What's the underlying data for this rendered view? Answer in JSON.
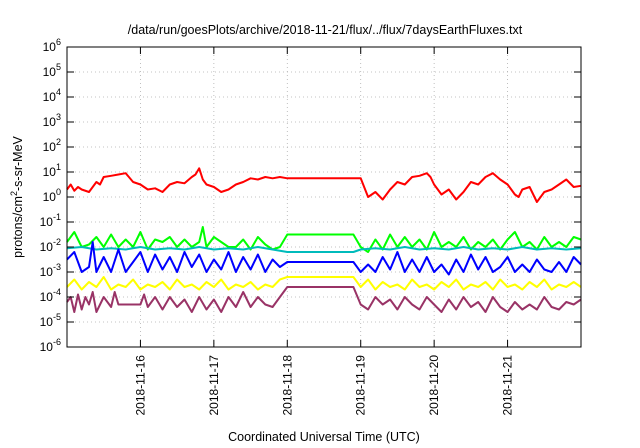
{
  "chart_data": {
    "type": "line",
    "title": "/data/run/goesPlots/archive/2018-11-21/flux/../flux/7daysEarthFluxes.txt",
    "xlabel": "Coordinated Universal Time (UTC)",
    "ylabel": {
      "base": "protons/cm",
      "sup": "2",
      "rest": "-s-sr-MeV"
    },
    "yscale": "log",
    "ylim_exp": [
      -6,
      6
    ],
    "y_ticks": [
      {
        "exp": -6,
        "label": "-6"
      },
      {
        "exp": -5,
        "label": "-5"
      },
      {
        "exp": -4,
        "label": "-4"
      },
      {
        "exp": -3,
        "label": "-3"
      },
      {
        "exp": -2,
        "label": "-2"
      },
      {
        "exp": -1,
        "label": "-1"
      },
      {
        "exp": 0,
        "label": "0"
      },
      {
        "exp": 1,
        "label": "1"
      },
      {
        "exp": 2,
        "label": "2"
      },
      {
        "exp": 3,
        "label": "3"
      },
      {
        "exp": 4,
        "label": "4"
      },
      {
        "exp": 5,
        "label": "5"
      },
      {
        "exp": 6,
        "label": "6"
      }
    ],
    "xlim_days": [
      0,
      7
    ],
    "x_ticks": [
      {
        "day": 1,
        "label": "2018-11-16"
      },
      {
        "day": 2,
        "label": "2018-11-17"
      },
      {
        "day": 3,
        "label": "2018-11-18"
      },
      {
        "day": 4,
        "label": "2018-11-19"
      },
      {
        "day": 5,
        "label": "2018-11-20"
      },
      {
        "day": 6,
        "label": "2018-11-21"
      }
    ],
    "grid": true,
    "series": [
      {
        "name": "red",
        "color": "#ff0000",
        "x": [
          0,
          0.05,
          0.1,
          0.15,
          0.2,
          0.3,
          0.4,
          0.45,
          0.5,
          0.6,
          0.7,
          0.8,
          0.9,
          1.0,
          1.05,
          1.1,
          1.2,
          1.3,
          1.4,
          1.5,
          1.6,
          1.7,
          1.75,
          1.8,
          1.85,
          1.9,
          2.0,
          2.1,
          2.2,
          2.3,
          2.4,
          2.5,
          2.6,
          2.7,
          2.8,
          2.9,
          3.0,
          3.5,
          3.8,
          4.0,
          4.1,
          4.2,
          4.3,
          4.4,
          4.5,
          4.6,
          4.7,
          4.8,
          4.9,
          4.95,
          5.0,
          5.1,
          5.2,
          5.3,
          5.4,
          5.5,
          5.6,
          5.7,
          5.8,
          5.9,
          6.0,
          6.1,
          6.15,
          6.2,
          6.3,
          6.4,
          6.5,
          6.6,
          6.7,
          6.8,
          6.9,
          7.0
        ],
        "exp": [
          0.3,
          0.5,
          0.25,
          0.4,
          0.3,
          0.2,
          0.6,
          0.5,
          0.8,
          0.85,
          0.9,
          0.95,
          0.6,
          0.5,
          0.4,
          0.3,
          0.35,
          0.2,
          0.5,
          0.6,
          0.55,
          0.8,
          0.9,
          1.15,
          0.7,
          0.5,
          0.4,
          0.2,
          0.3,
          0.5,
          0.6,
          0.75,
          0.7,
          0.8,
          0.75,
          0.8,
          0.75,
          0.75,
          0.75,
          0.75,
          0.0,
          0.2,
          -0.1,
          0.3,
          0.6,
          0.5,
          0.8,
          0.85,
          0.95,
          0.8,
          0.5,
          0.1,
          0.3,
          -0.1,
          0.2,
          0.6,
          0.5,
          0.8,
          0.95,
          0.7,
          0.5,
          0.1,
          0.0,
          0.3,
          0.4,
          -0.2,
          0.2,
          0.3,
          0.5,
          0.7,
          0.4,
          0.45
        ]
      },
      {
        "name": "green",
        "color": "#00ff00",
        "x": [
          0,
          0.1,
          0.2,
          0.3,
          0.4,
          0.5,
          0.6,
          0.7,
          0.8,
          0.9,
          1.0,
          1.1,
          1.2,
          1.3,
          1.4,
          1.5,
          1.6,
          1.7,
          1.8,
          1.85,
          1.9,
          2.0,
          2.1,
          2.2,
          2.3,
          2.4,
          2.5,
          2.6,
          2.7,
          2.8,
          2.9,
          3.0,
          3.9,
          4.0,
          4.1,
          4.2,
          4.3,
          4.4,
          4.5,
          4.6,
          4.7,
          4.8,
          4.9,
          5.0,
          5.1,
          5.2,
          5.3,
          5.4,
          5.5,
          5.6,
          5.7,
          5.8,
          5.9,
          6.0,
          6.1,
          6.2,
          6.3,
          6.4,
          6.5,
          6.6,
          6.7,
          6.8,
          6.9,
          7.0
        ],
        "exp": [
          -1.8,
          -1.4,
          -2.0,
          -1.9,
          -1.6,
          -2.0,
          -1.5,
          -2.0,
          -1.7,
          -2.0,
          -1.4,
          -2.1,
          -1.7,
          -1.8,
          -1.6,
          -2.0,
          -1.7,
          -2.0,
          -1.8,
          -1.2,
          -2.0,
          -1.6,
          -1.8,
          -2.0,
          -2.0,
          -1.7,
          -2.1,
          -1.6,
          -1.9,
          -2.1,
          -2.0,
          -1.5,
          -1.5,
          -2.0,
          -2.2,
          -1.7,
          -2.1,
          -1.5,
          -2.0,
          -1.6,
          -2.0,
          -1.7,
          -2.1,
          -1.4,
          -2.0,
          -1.8,
          -2.0,
          -1.6,
          -2.1,
          -1.8,
          -2.0,
          -1.7,
          -2.1,
          -1.7,
          -1.4,
          -2.0,
          -1.8,
          -2.1,
          -1.6,
          -2.0,
          -1.8,
          -2.0,
          -1.6,
          -1.7
        ]
      },
      {
        "name": "cyan",
        "color": "#00bbbb",
        "x": [
          0,
          0.2,
          0.4,
          0.6,
          0.8,
          1.0,
          1.2,
          1.4,
          1.6,
          1.8,
          2.0,
          2.2,
          2.4,
          2.6,
          2.8,
          3.0,
          3.9,
          4.0,
          4.2,
          4.4,
          4.6,
          4.8,
          5.0,
          5.2,
          5.4,
          5.6,
          5.8,
          6.0,
          6.2,
          6.4,
          6.6,
          6.8,
          7.0
        ],
        "exp": [
          -2.05,
          -2.0,
          -2.1,
          -2.05,
          -2.1,
          -2.0,
          -2.1,
          -2.05,
          -2.1,
          -2.0,
          -2.1,
          -2.05,
          -2.1,
          -2.0,
          -2.1,
          -2.2,
          -2.2,
          -2.1,
          -2.05,
          -2.1,
          -2.0,
          -2.1,
          -2.05,
          -2.1,
          -2.0,
          -2.1,
          -2.05,
          -2.1,
          -2.0,
          -2.1,
          -2.05,
          -2.1,
          -2.05
        ]
      },
      {
        "name": "blue",
        "color": "#0000ff",
        "x": [
          0,
          0.1,
          0.2,
          0.3,
          0.35,
          0.4,
          0.5,
          0.6,
          0.7,
          0.8,
          0.9,
          1.0,
          1.1,
          1.2,
          1.3,
          1.4,
          1.5,
          1.6,
          1.7,
          1.8,
          1.9,
          2.0,
          2.1,
          2.2,
          2.3,
          2.4,
          2.5,
          2.6,
          2.7,
          2.8,
          2.9,
          3.0,
          3.9,
          4.0,
          4.1,
          4.2,
          4.3,
          4.4,
          4.5,
          4.6,
          4.7,
          4.8,
          4.9,
          5.0,
          5.1,
          5.2,
          5.3,
          5.4,
          5.5,
          5.6,
          5.7,
          5.8,
          5.9,
          6.0,
          6.1,
          6.2,
          6.3,
          6.4,
          6.5,
          6.6,
          6.7,
          6.8,
          6.9,
          7.0
        ],
        "exp": [
          -2.5,
          -2.2,
          -3.0,
          -2.8,
          -1.8,
          -3.0,
          -2.4,
          -3.0,
          -2.1,
          -3.0,
          -2.6,
          -2.2,
          -3.0,
          -2.3,
          -2.9,
          -2.4,
          -3.0,
          -2.2,
          -2.8,
          -2.3,
          -3.0,
          -2.5,
          -2.9,
          -2.2,
          -3.0,
          -2.4,
          -2.9,
          -2.3,
          -3.0,
          -2.5,
          -2.8,
          -2.6,
          -2.6,
          -3.0,
          -2.7,
          -3.0,
          -2.4,
          -2.9,
          -2.2,
          -3.0,
          -2.5,
          -3.0,
          -2.4,
          -3.0,
          -2.7,
          -3.1,
          -2.5,
          -3.0,
          -2.3,
          -2.9,
          -2.4,
          -3.0,
          -2.8,
          -2.4,
          -3.0,
          -2.7,
          -3.0,
          -2.5,
          -2.9,
          -3.0,
          -2.6,
          -3.0,
          -2.4,
          -2.7
        ]
      },
      {
        "name": "yellow",
        "color": "#ffff00",
        "x": [
          0,
          0.1,
          0.2,
          0.3,
          0.4,
          0.5,
          0.6,
          0.7,
          0.8,
          0.9,
          1.0,
          1.1,
          1.2,
          1.3,
          1.4,
          1.5,
          1.6,
          1.7,
          1.8,
          1.9,
          2.0,
          2.1,
          2.2,
          2.3,
          2.4,
          2.5,
          2.6,
          2.7,
          2.8,
          2.9,
          3.0,
          3.9,
          4.0,
          4.1,
          4.2,
          4.3,
          4.4,
          4.5,
          4.6,
          4.7,
          4.8,
          4.9,
          5.0,
          5.1,
          5.2,
          5.3,
          5.4,
          5.5,
          5.6,
          5.7,
          5.8,
          5.9,
          6.0,
          6.1,
          6.2,
          6.3,
          6.4,
          6.5,
          6.6,
          6.7,
          6.8,
          6.9,
          7.0
        ],
        "exp": [
          -3.6,
          -3.3,
          -3.7,
          -3.4,
          -3.6,
          -3.2,
          -3.7,
          -3.5,
          -3.6,
          -3.3,
          -3.7,
          -3.5,
          -3.6,
          -3.4,
          -3.7,
          -3.3,
          -3.6,
          -3.5,
          -3.7,
          -3.4,
          -3.6,
          -3.3,
          -3.7,
          -3.5,
          -3.6,
          -3.4,
          -3.7,
          -3.5,
          -3.6,
          -3.3,
          -3.2,
          -3.2,
          -3.6,
          -3.3,
          -3.7,
          -3.4,
          -3.6,
          -3.5,
          -3.7,
          -3.3,
          -3.6,
          -3.5,
          -3.7,
          -3.4,
          -3.6,
          -3.3,
          -3.7,
          -3.5,
          -3.6,
          -3.4,
          -3.7,
          -3.3,
          -3.6,
          -3.5,
          -3.7,
          -3.4,
          -3.6,
          -3.3,
          -3.7,
          -3.5,
          -3.6,
          -3.4,
          -3.6
        ]
      },
      {
        "name": "purple",
        "color": "#993366",
        "x": [
          0,
          0.05,
          0.1,
          0.15,
          0.2,
          0.25,
          0.3,
          0.35,
          0.4,
          0.5,
          0.6,
          0.65,
          0.7,
          0.8,
          0.9,
          1.0,
          1.05,
          1.1,
          1.2,
          1.3,
          1.4,
          1.5,
          1.6,
          1.7,
          1.8,
          1.9,
          2.0,
          2.1,
          2.2,
          2.3,
          2.4,
          2.5,
          2.6,
          2.7,
          2.8,
          2.9,
          3.0,
          3.9,
          4.0,
          4.1,
          4.2,
          4.3,
          4.4,
          4.5,
          4.6,
          4.7,
          4.8,
          4.9,
          5.0,
          5.1,
          5.2,
          5.3,
          5.4,
          5.5,
          5.6,
          5.7,
          5.8,
          5.9,
          6.0,
          6.1,
          6.2,
          6.3,
          6.4,
          6.5,
          6.6,
          6.7,
          6.8,
          6.9,
          7.0
        ],
        "exp": [
          -4.2,
          -4.0,
          -4.6,
          -3.9,
          -4.5,
          -4.0,
          -4.3,
          -3.8,
          -4.6,
          -4.0,
          -4.4,
          -3.8,
          -4.3,
          -4.3,
          -4.3,
          -4.3,
          -3.9,
          -4.4,
          -4.0,
          -4.5,
          -4.0,
          -4.4,
          -4.1,
          -4.6,
          -4.0,
          -4.5,
          -4.1,
          -4.6,
          -4.0,
          -4.4,
          -3.8,
          -4.4,
          -4.0,
          -4.3,
          -4.4,
          -4.0,
          -3.6,
          -3.6,
          -4.3,
          -4.5,
          -4.0,
          -4.3,
          -4.1,
          -4.5,
          -4.0,
          -4.3,
          -4.5,
          -4.0,
          -4.3,
          -4.6,
          -4.1,
          -4.5,
          -4.0,
          -4.4,
          -4.2,
          -4.6,
          -4.0,
          -4.4,
          -4.6,
          -4.2,
          -4.5,
          -4.3,
          -4.5,
          -4.0,
          -4.4,
          -4.5,
          -4.2,
          -4.3,
          -4.1
        ]
      }
    ]
  }
}
